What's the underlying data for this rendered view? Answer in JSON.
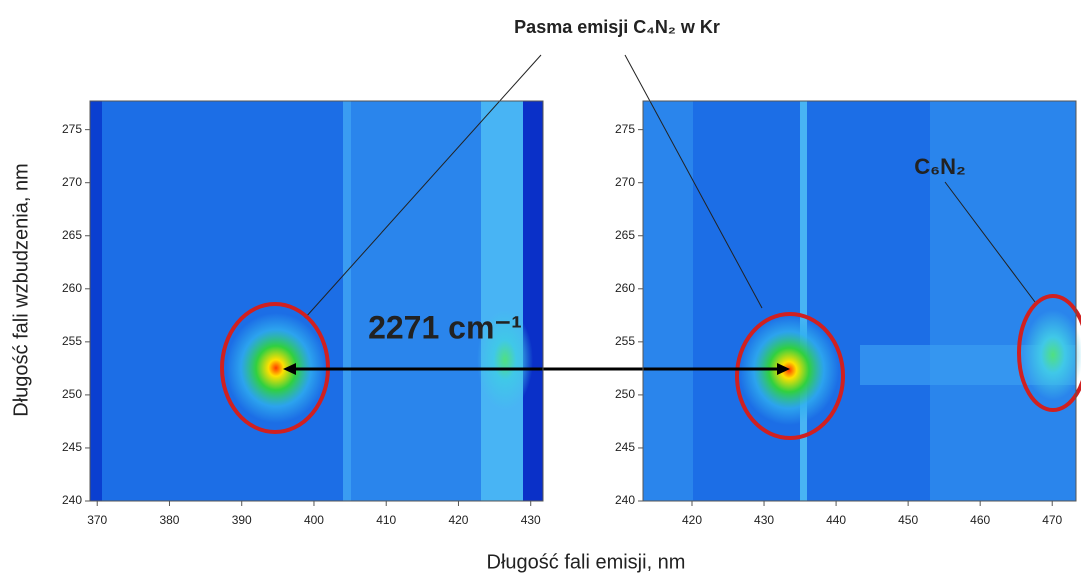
{
  "figure": {
    "title": "Pasma emisji C₄N₂ w Kr",
    "xlabel": "Długość fali emisji,  nm",
    "ylabel": "Długość fali wzbudzenia, nm"
  },
  "chart_data": [
    {
      "type": "heatmap",
      "xlim": [
        369,
        431.7
      ],
      "ylim": [
        240,
        277.7
      ],
      "xticks": [
        370,
        380,
        390,
        400,
        410,
        420,
        430
      ],
      "yticks": [
        240,
        245,
        250,
        255,
        260,
        265,
        270,
        275
      ],
      "annotations": [
        "2271 cm⁻¹"
      ]
    },
    {
      "type": "heatmap",
      "xlim": [
        413.2,
        473.3
      ],
      "ylim": [
        240,
        277.7
      ],
      "xticks": [
        420,
        430,
        440,
        450,
        460,
        470
      ],
      "yticks": [
        240,
        245,
        250,
        255,
        260,
        265,
        270,
        275
      ],
      "annotations": [
        "C₆N₂"
      ]
    }
  ]
}
